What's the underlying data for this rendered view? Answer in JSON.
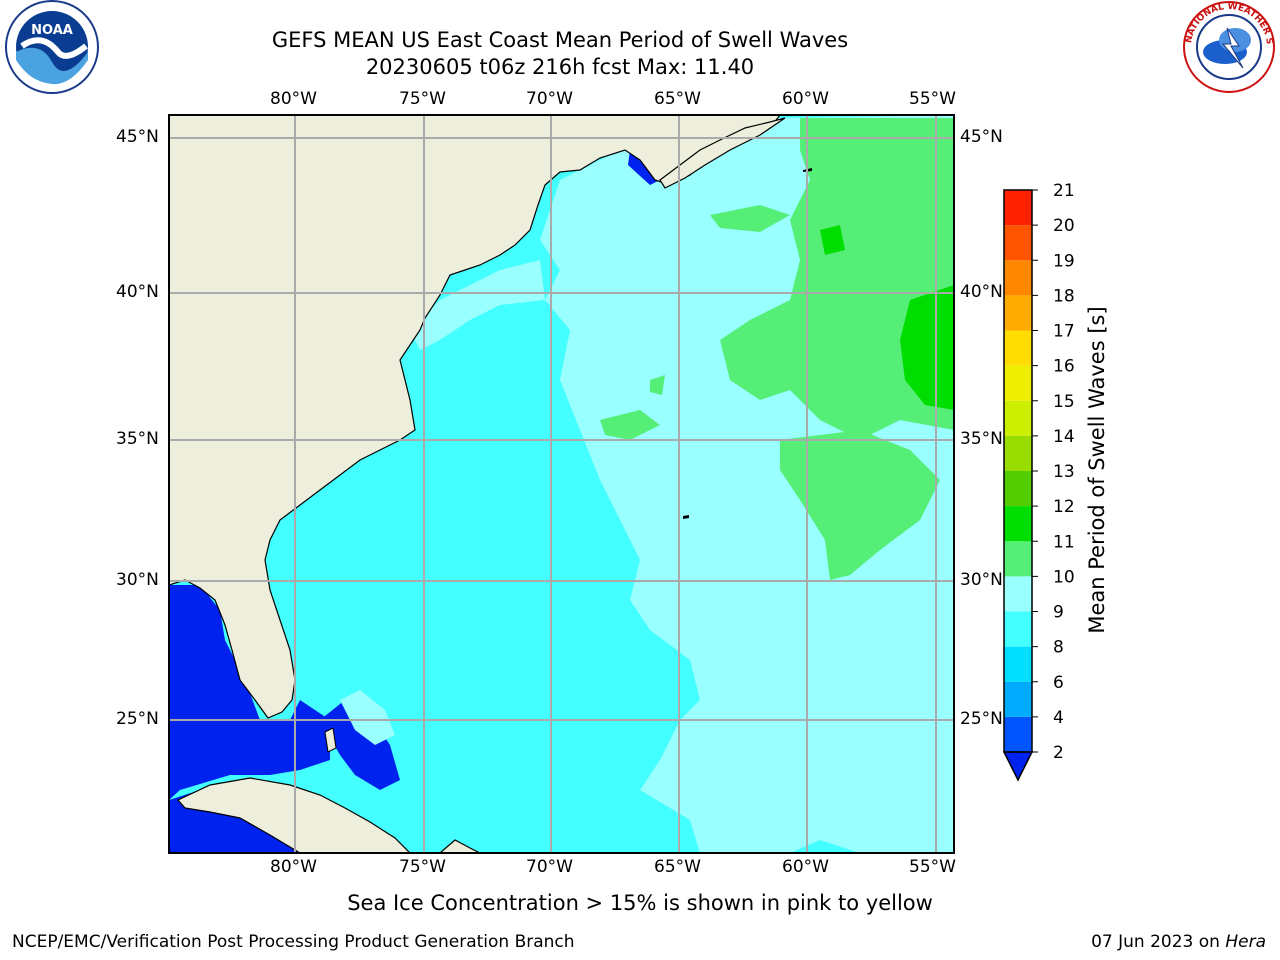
{
  "header": {
    "title_line1": "GEFS MEAN US East Coast Mean Period of Swell Waves",
    "title_line2": "20230605 t06z 216h fcst   Max: 11.40"
  },
  "logos": {
    "left": {
      "name": "noaa-logo",
      "text": "NOAA",
      "ring_text": "NATIONAL OCEANIC AND ATMOSPHERIC ADMINISTRATION · U.S. DEPARTMENT OF COMMERCE"
    },
    "right": {
      "name": "nws-logo",
      "ring_text": "NATIONAL WEATHER SERVICE"
    }
  },
  "map": {
    "lon_labels": [
      "80°W",
      "75°W",
      "70°W",
      "65°W",
      "60°W",
      "55°W"
    ],
    "lat_labels": [
      "45°N",
      "40°N",
      "35°N",
      "30°N",
      "25°N"
    ],
    "lon_range": [
      -85,
      -54.3
    ],
    "lat_range": [
      20.5,
      46
    ]
  },
  "colorbar": {
    "label": "Mean Period of Swell Waves [s]",
    "ticks": [
      "2",
      "4",
      "6",
      "8",
      "9",
      "10",
      "11",
      "12",
      "13",
      "14",
      "15",
      "16",
      "17",
      "18",
      "19",
      "20",
      "21"
    ],
    "colors": [
      "#0055ff",
      "#00aaff",
      "#00ddff",
      "#44ffff",
      "#99ffff",
      "#55ee77",
      "#00dd00",
      "#55cc00",
      "#99dd00",
      "#ccee00",
      "#eeee00",
      "#ffdd00",
      "#ffaa00",
      "#ff8800",
      "#ff5500",
      "#ff2200"
    ],
    "below_color": "#0022ee"
  },
  "colors": {
    "land": "#eeeedd",
    "deep_blue": "#0022ee",
    "cyan": "#44ffff",
    "light_cyan": "#99ffff",
    "green": "#55ee77",
    "bright_green": "#00dd00",
    "grid": "#aaaaaa"
  },
  "note": "Sea Ice Concentration > 15% is shown in pink to yellow",
  "footer": {
    "left": "NCEP/EMC/Verification Post Processing Product Generation Branch",
    "right_date": "07 Jun 2023 on ",
    "right_host": "Hera"
  }
}
